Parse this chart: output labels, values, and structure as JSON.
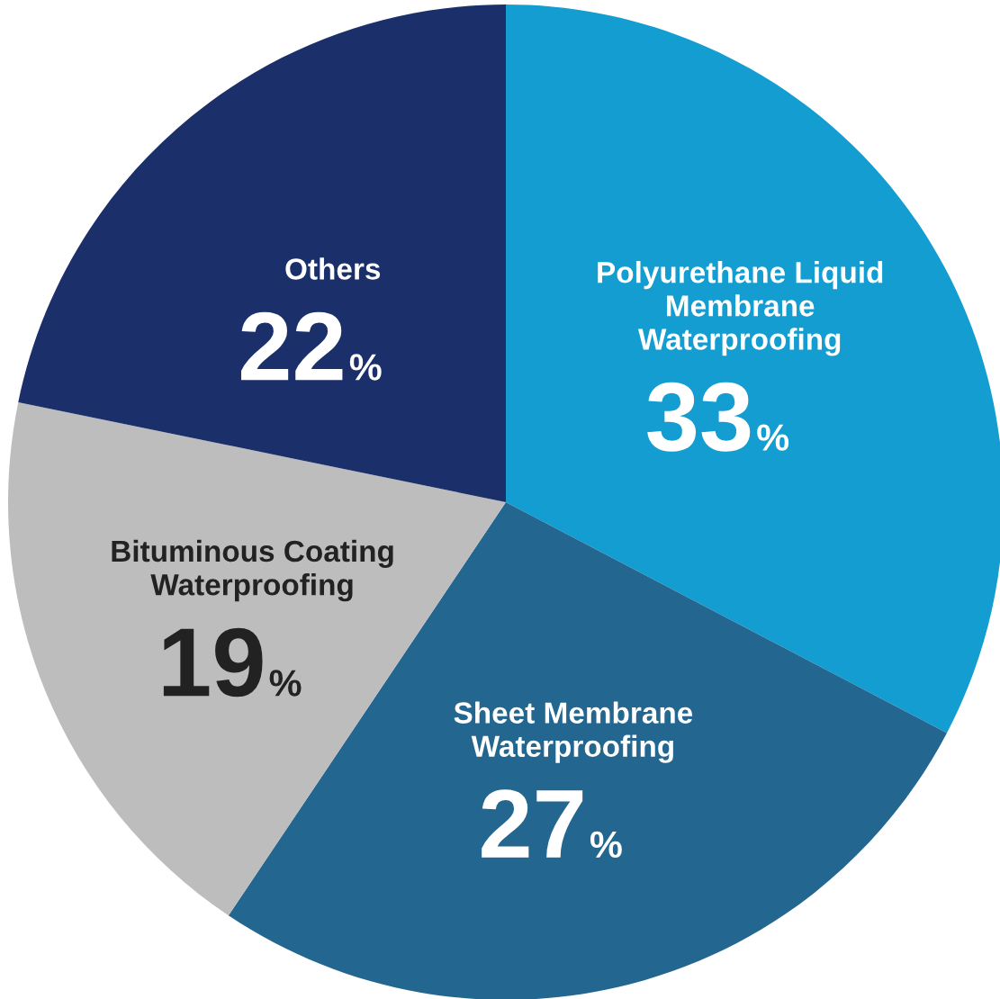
{
  "chart_data": {
    "type": "pie",
    "categories": [
      "Polyurethane Liquid\nMembrane\nWaterproofing",
      "Sheet Membrane\nWaterproofing",
      "Bituminous Coating\nWaterproofing",
      "Others"
    ],
    "values": [
      33,
      27,
      19,
      22
    ],
    "colors": [
      "#139dd0",
      "#236690",
      "#bdbdbd",
      "#1b2f6b"
    ],
    "value_labels": [
      "33%",
      "27%",
      "19%",
      "22%"
    ]
  }
}
